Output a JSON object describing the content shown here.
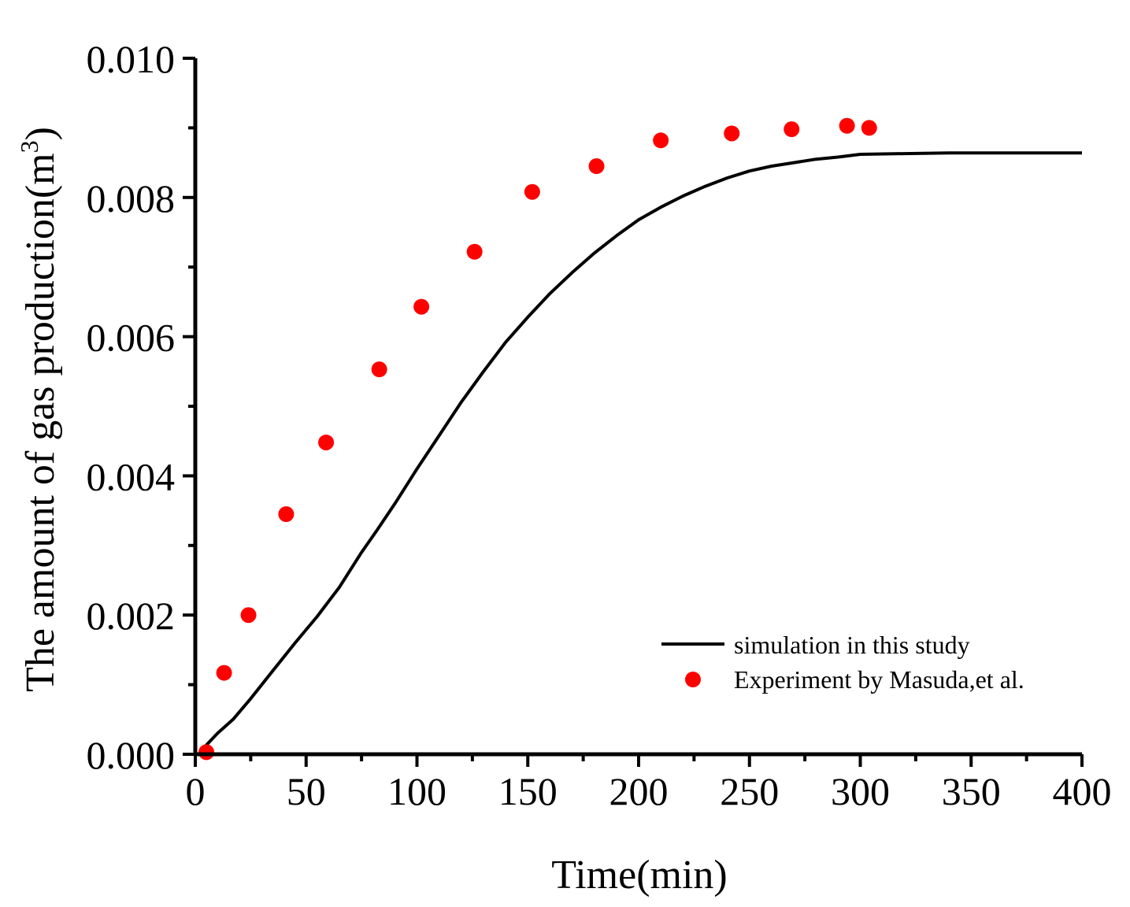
{
  "chart_data": {
    "type": "line",
    "title": "",
    "xlabel": "Time(min)",
    "ylabel": "The amount of gas production(m",
    "ylabel_sup": "3",
    "ylabel_end": ")",
    "xlim": [
      0,
      400
    ],
    "ylim": [
      0,
      0.01
    ],
    "x_ticks": [
      "0",
      "50",
      "100",
      "150",
      "200",
      "250",
      "300",
      "350",
      "400"
    ],
    "y_ticks": [
      "0.000",
      "0.002",
      "0.004",
      "0.006",
      "0.008",
      "0.010"
    ],
    "grid": false,
    "legend_position": "bottom-right",
    "series": [
      {
        "name": "simulation in this study",
        "kind": "line",
        "color": "#000000",
        "x": [
          4,
          10,
          17,
          25,
          35,
          45,
          55,
          65,
          75,
          82,
          90,
          100,
          110,
          120,
          130,
          140,
          150,
          160,
          170,
          180,
          190,
          200,
          210,
          220,
          230,
          240,
          250,
          260,
          270,
          280,
          290,
          300,
          320,
          340,
          360,
          380,
          400
        ],
        "y": [
          0.0001,
          0.0003,
          0.0005,
          0.0008,
          0.0012,
          0.0016,
          0.00198,
          0.0024,
          0.0029,
          0.00322,
          0.0036,
          0.0041,
          0.00458,
          0.00506,
          0.0055,
          0.00592,
          0.00628,
          0.00662,
          0.00692,
          0.0072,
          0.00745,
          0.00768,
          0.00786,
          0.00802,
          0.00816,
          0.00828,
          0.00838,
          0.00845,
          0.0085,
          0.00855,
          0.00858,
          0.00862,
          0.00863,
          0.00864,
          0.00864,
          0.00864,
          0.00864
        ]
      },
      {
        "name": "Experiment by Masuda,et al.",
        "kind": "scatter",
        "color": "#ff0000",
        "x": [
          5,
          13,
          24,
          41,
          59,
          83,
          102,
          126,
          152,
          181,
          210,
          242,
          269,
          294,
          304
        ],
        "y": [
          3e-05,
          0.00117,
          0.002,
          0.00345,
          0.00448,
          0.00553,
          0.00643,
          0.00722,
          0.00808,
          0.00845,
          0.00882,
          0.00892,
          0.00898,
          0.00903,
          0.009
        ]
      }
    ]
  }
}
